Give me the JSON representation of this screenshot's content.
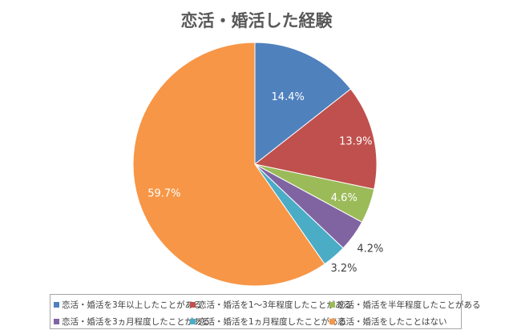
{
  "chart_data": {
    "type": "pie",
    "title": "恋活・婚活した経験",
    "categories": [
      "恋活・婚活を3年以上したことがある",
      "恋活・婚活を1～3年程度したことがある",
      "恋活・婚活を半年程度したことがある",
      "恋活・婚活を3ヵ月程度したことがある",
      "恋活・婚活を1ヵ月程度したことがある",
      "恋活・婚活をしたことはない"
    ],
    "values": [
      14.4,
      13.9,
      4.6,
      4.2,
      3.2,
      59.7
    ],
    "labels": [
      "14.4%",
      "13.9%",
      "4.6%",
      "4.2%",
      "3.2%",
      "59.7%"
    ],
    "colors": [
      "#4f81bd",
      "#c0504d",
      "#9bbb59",
      "#8064a2",
      "#4bacc6",
      "#f79646"
    ],
    "legend_position": "bottom"
  }
}
